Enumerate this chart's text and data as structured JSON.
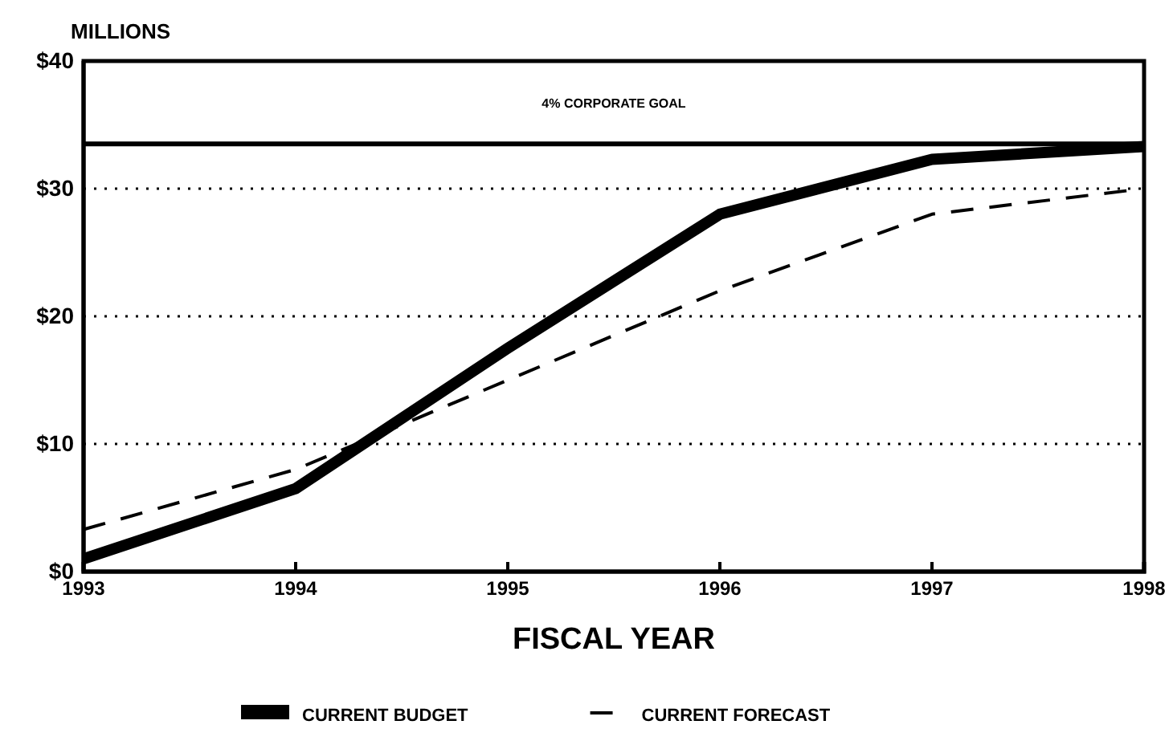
{
  "chart_data": {
    "type": "line",
    "ylabel": "MILLIONS",
    "xlabel": "FISCAL YEAR",
    "x": [
      1993,
      1994,
      1995,
      1996,
      1997,
      1998
    ],
    "series": [
      {
        "name": "CURRENT BUDGET",
        "color": "#000000",
        "line_style": "solid",
        "values": [
          1,
          6.5,
          17.5,
          28,
          32.3,
          33.3
        ]
      },
      {
        "name": "CURRENT FORECAST",
        "color": "#000000",
        "line_style": "dashed",
        "values": [
          3.3,
          8,
          15,
          22,
          28,
          30
        ]
      }
    ],
    "xlim": [
      1993,
      1998
    ],
    "xticks": [
      1993,
      1994,
      1995,
      1996,
      1997,
      1998
    ],
    "ylim": [
      0,
      40
    ],
    "yticks": [
      {
        "value": 0,
        "label": "$0"
      },
      {
        "value": 10,
        "label": "$10"
      },
      {
        "value": 20,
        "label": "$20"
      },
      {
        "value": 30,
        "label": "$30"
      },
      {
        "value": 40,
        "label": "$40"
      }
    ],
    "ref_lines": [
      {
        "axis": "y",
        "value": 33.5,
        "label": "4% CORPORATE GOAL",
        "color": "#000000"
      }
    ],
    "grid": "y",
    "legend": "bottom",
    "marker": "none"
  }
}
